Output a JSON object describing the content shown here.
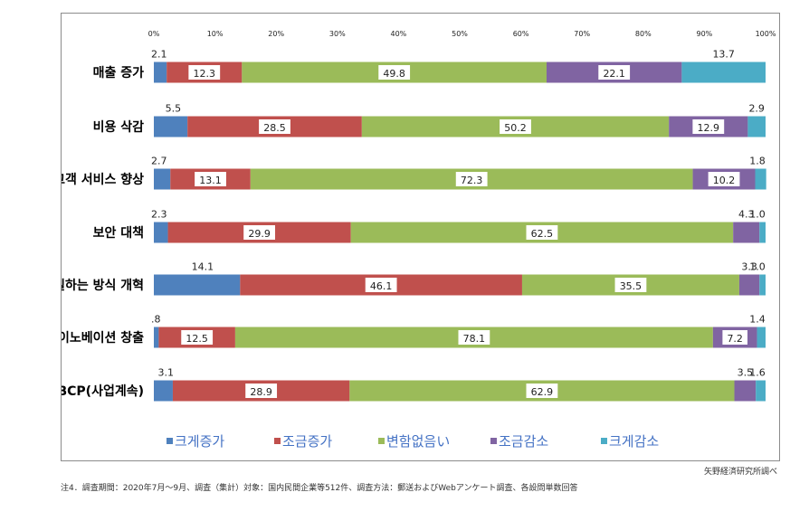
{
  "chart_data": {
    "type": "bar",
    "stacked": true,
    "orientation": "horizontal",
    "categories": [
      "매출 증가",
      "비용 삭감",
      "고객 서비스 향상",
      "보안 대책",
      "일하는 방식 개혁",
      "이노베이션 창출",
      "BCP(사업계속)"
    ],
    "series": [
      {
        "name": "크게증가",
        "color": "#4f81bd",
        "values": [
          2.1,
          5.5,
          2.7,
          2.3,
          14.1,
          0.8,
          3.1
        ],
        "labels": [
          "2.1",
          "5.5",
          "2.7",
          "2.3",
          "14.1",
          ".8",
          "3.1"
        ]
      },
      {
        "name": "조금증가",
        "color": "#c0504d",
        "values": [
          12.3,
          28.5,
          13.1,
          29.9,
          46.1,
          12.5,
          28.9
        ],
        "labels": [
          "12.3",
          "28.5",
          "13.1",
          "29.9",
          "46.1",
          "12.5",
          "28.9"
        ]
      },
      {
        "name": "변함없음い",
        "color": "#9bbb59",
        "values": [
          49.8,
          50.2,
          72.3,
          62.5,
          35.5,
          78.1,
          62.9
        ],
        "labels": [
          "49.8",
          "50.2",
          "72.3",
          "62.5",
          "35.5",
          "78.1",
          "62.9"
        ]
      },
      {
        "name": "조금감소",
        "color": "#8064a2",
        "values": [
          22.1,
          12.9,
          10.2,
          4.3,
          3.3,
          7.2,
          3.5
        ],
        "labels": [
          "22.1",
          "12.9",
          "10.2",
          "4.3",
          "3.3",
          "7.2",
          "3.5"
        ]
      },
      {
        "name": "크게감소",
        "color": "#4bacc6",
        "values": [
          13.7,
          2.9,
          1.8,
          1.0,
          1.0,
          1.4,
          1.6
        ],
        "labels": [
          "13.7",
          "2.9",
          "1.8",
          "1.0",
          "1.0",
          "1.4",
          "1.6"
        ]
      }
    ],
    "xlim": [
      0,
      100
    ],
    "xticks": [
      "0%",
      "10%",
      "20%",
      "30%",
      "40%",
      "50%",
      "60%",
      "70%",
      "80%",
      "90%",
      "100%"
    ],
    "legend": "bottom",
    "grid": false
  },
  "source": "矢野経済研究所調べ",
  "footnote": "注4．調査期間：2020年7月～9月、調査（集計）対象：国内民間企業等512件、調査方法：郵送およびWebアンケート調査、各設問単数回答"
}
